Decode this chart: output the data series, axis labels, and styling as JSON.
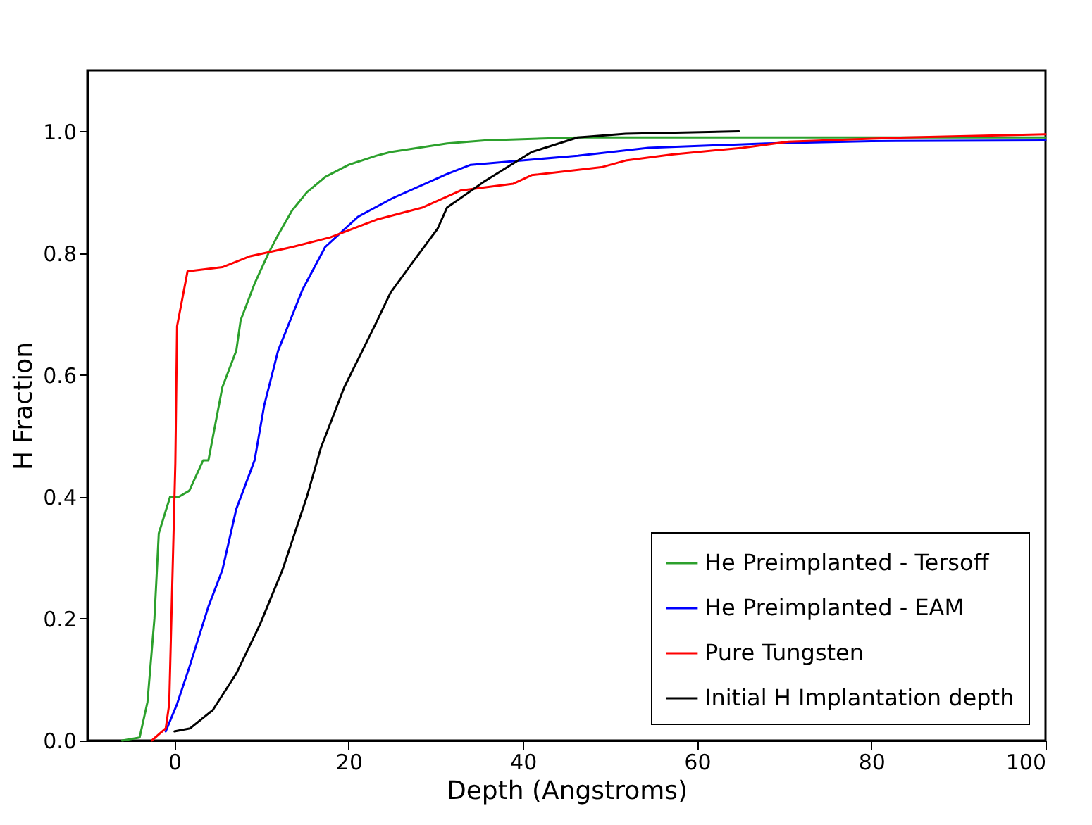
{
  "chart_data": {
    "type": "line",
    "xlabel": "Depth (Angstroms)",
    "ylabel": "H Fraction",
    "xlim": [
      -10,
      100
    ],
    "ylim": [
      0,
      1.1
    ],
    "xticks": [
      0,
      20,
      40,
      60,
      80,
      100
    ],
    "yticks": [
      {
        "value": 0,
        "label": "0.0"
      },
      {
        "value": 0.2,
        "label": "0.2"
      },
      {
        "value": 0.4,
        "label": "0.4"
      },
      {
        "value": 0.6,
        "label": "0.6"
      },
      {
        "value": 0.8,
        "label": "0.8"
      },
      {
        "value": 1,
        "label": "1.0"
      }
    ],
    "grid": false,
    "legend": "bottom right",
    "marker": "none",
    "line_style": "solid",
    "series": [
      {
        "name": "He Preimplanted - Tersoff",
        "color": "#2ca02c",
        "x": [
          -6,
          -4,
          -3.1,
          -2.3,
          -1.8,
          -0.5,
          0.5,
          1.7,
          3.3,
          3.9,
          5.5,
          7.1,
          7.6,
          9.2,
          10.8,
          11.9,
          13.5,
          15.2,
          17.3,
          20,
          23.2,
          24.8,
          31.3,
          35.6,
          46.3,
          60,
          80,
          100
        ],
        "values": [
          0,
          0.005,
          0.063,
          0.2,
          0.34,
          0.4,
          0.4,
          0.41,
          0.46,
          0.46,
          0.58,
          0.64,
          0.69,
          0.75,
          0.8,
          0.83,
          0.87,
          0.9,
          0.925,
          0.945,
          0.96,
          0.966,
          0.98,
          0.985,
          0.99,
          0.99,
          0.99,
          0.99
        ]
      },
      {
        "name": "He Preimplanted - EAM",
        "color": "#0000ff",
        "x": [
          -1,
          0.3,
          1.7,
          3.9,
          5.5,
          7.1,
          9.2,
          10.3,
          11.9,
          14.7,
          17.3,
          21.1,
          25,
          31.3,
          34,
          46.3,
          54.4,
          67.9,
          80,
          100
        ],
        "values": [
          0.015,
          0.06,
          0.12,
          0.22,
          0.28,
          0.38,
          0.46,
          0.55,
          0.64,
          0.74,
          0.81,
          0.86,
          0.89,
          0.93,
          0.945,
          0.96,
          0.973,
          0.98,
          0.984,
          0.985
        ]
      },
      {
        "name": "Pure Tungsten",
        "color": "#ff0000",
        "x": [
          -2.6,
          -1,
          -0.6,
          0.1,
          0.3,
          1.5,
          5.5,
          8.7,
          13.5,
          17.9,
          23.2,
          28.5,
          32.9,
          38.9,
          41,
          49,
          51.8,
          57.1,
          65.2,
          70.5,
          84,
          100
        ],
        "values": [
          0,
          0.02,
          0.06,
          0.455,
          0.68,
          0.77,
          0.777,
          0.795,
          0.81,
          0.826,
          0.855,
          0.875,
          0.903,
          0.914,
          0.928,
          0.941,
          0.952,
          0.962,
          0.973,
          0.983,
          0.99,
          0.995
        ]
      },
      {
        "name": "Initial H Implantation depth",
        "color": "#000000",
        "x": [
          0,
          1.8,
          4.4,
          7.1,
          9.8,
          12.4,
          15.2,
          16.8,
          19.5,
          23.2,
          24.8,
          27.6,
          30.2,
          31.3,
          35.6,
          41,
          46.3,
          51.8,
          64.8
        ],
        "values": [
          0.015,
          0.02,
          0.05,
          0.11,
          0.19,
          0.28,
          0.4,
          0.48,
          0.58,
          0.687,
          0.735,
          0.79,
          0.84,
          0.875,
          0.918,
          0.966,
          0.99,
          0.996,
          1.0
        ]
      }
    ]
  }
}
